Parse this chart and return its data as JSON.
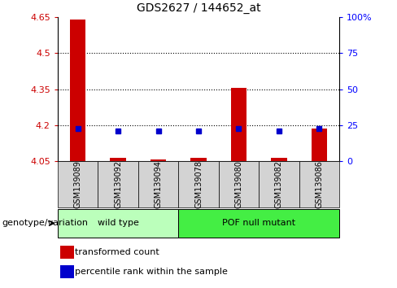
{
  "title": "GDS2627 / 144652_at",
  "samples": [
    "GSM139089",
    "GSM139092",
    "GSM139094",
    "GSM139078",
    "GSM139080",
    "GSM139082",
    "GSM139086"
  ],
  "red_values": [
    4.64,
    4.065,
    4.057,
    4.063,
    4.355,
    4.065,
    4.185
  ],
  "blue_values": [
    4.185,
    4.175,
    4.175,
    4.175,
    4.185,
    4.175,
    4.185
  ],
  "baseline": 4.05,
  "ylim": [
    4.05,
    4.65
  ],
  "yticks_left": [
    4.05,
    4.2,
    4.35,
    4.5,
    4.65
  ],
  "yticks_right": [
    0,
    25,
    50,
    75,
    100
  ],
  "dotted_lines": [
    4.5,
    4.35,
    4.2
  ],
  "red_color": "#cc0000",
  "blue_color": "#0000cc",
  "bar_width": 0.4,
  "blue_marker_size": 5,
  "sample_bg_color": "#d3d3d3",
  "wild_type_color": "#bbffbb",
  "pof_color": "#44ee44",
  "legend_items": [
    "transformed count",
    "percentile rank within the sample"
  ],
  "genotype_label": "genotype/variation",
  "group_defs": [
    {
      "label": "wild type",
      "start": 0,
      "end": 2
    },
    {
      "label": "POF null mutant",
      "start": 3,
      "end": 6
    }
  ]
}
